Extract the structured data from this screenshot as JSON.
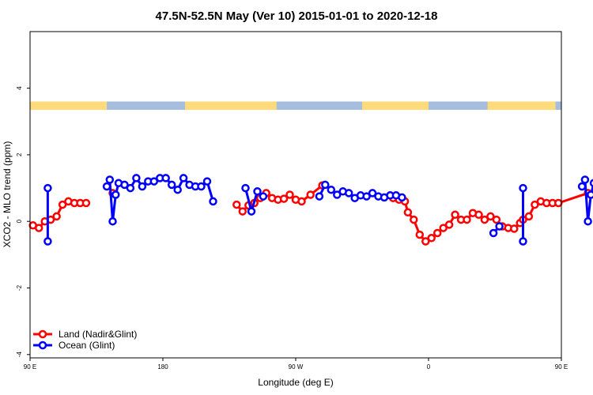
{
  "chart_data": {
    "type": "line",
    "title": "47.5N-52.5N May (Ver 10)   2015-01-01 to 2020-12-18",
    "xlabel": "Longitude (deg E)",
    "ylabel": "XCO2 - MLO trend (ppm)",
    "xlim": [
      90,
      450
    ],
    "ylim": [
      -4.1,
      5.7
    ],
    "x_ticks": [
      {
        "value": 90,
        "label": "90 E"
      },
      {
        "value": 180,
        "label": "180"
      },
      {
        "value": 270,
        "label": "90 W"
      },
      {
        "value": 360,
        "label": "0"
      },
      {
        "value": 450,
        "label": "90 E"
      },
      {
        "value": 540,
        "label": "180"
      }
    ],
    "y_ticks": [
      {
        "value": -4,
        "label": "-4"
      },
      {
        "value": -2,
        "label": "-2"
      },
      {
        "value": 0,
        "label": "0"
      },
      {
        "value": 2,
        "label": "2"
      },
      {
        "value": 4,
        "label": "4"
      }
    ],
    "grid": false,
    "legend_position": "bottom-left",
    "surface_strip": {
      "y_range": [
        3.35,
        3.6
      ],
      "land_color": "#FFDA7A",
      "ocean_color": "#A7BDDE",
      "land_segments": [
        [
          90,
          142
        ],
        [
          195,
          257
        ],
        [
          315,
          360
        ],
        [
          400,
          446
        ],
        [
          480,
          540
        ]
      ]
    },
    "series": [
      {
        "name": "Land (Nadir&Glint)",
        "color": "#FF0000",
        "points": [
          [
            92,
            -0.12
          ],
          [
            96,
            -0.2
          ],
          [
            100,
            0
          ],
          [
            104,
            0.05
          ],
          [
            108,
            0.15
          ],
          [
            112,
            0.5
          ],
          [
            116,
            0.6
          ],
          [
            120,
            0.55
          ],
          [
            124,
            0.55
          ],
          [
            128,
            0.55
          ],
          [
            146,
            0.85
          ],
          [
            230,
            0.5
          ],
          [
            234,
            0.3
          ],
          [
            238,
            0.48
          ],
          [
            242,
            0.55
          ],
          [
            246,
            0.7
          ],
          [
            250,
            0.85
          ],
          [
            254,
            0.7
          ],
          [
            258,
            0.65
          ],
          [
            262,
            0.68
          ],
          [
            266,
            0.8
          ],
          [
            270,
            0.65
          ],
          [
            274,
            0.6
          ],
          [
            280,
            0.8
          ],
          [
            288,
            1.08
          ],
          [
            336,
            0.7
          ],
          [
            340,
            0.65
          ],
          [
            344,
            0.6
          ],
          [
            346,
            0.27
          ],
          [
            350,
            0.05
          ],
          [
            354,
            -0.4
          ],
          [
            358,
            -0.6
          ],
          [
            362,
            -0.5
          ],
          [
            366,
            -0.35
          ],
          [
            370,
            -0.2
          ],
          [
            374,
            -0.1
          ],
          [
            378,
            0.2
          ],
          [
            382,
            0.05
          ],
          [
            386,
            0.05
          ],
          [
            390,
            0.25
          ],
          [
            394,
            0.2
          ],
          [
            398,
            0.05
          ],
          [
            402,
            0.15
          ],
          [
            406,
            0.05
          ],
          [
            410,
            -0.15
          ],
          [
            414,
            -0.2
          ],
          [
            418,
            -0.22
          ],
          [
            422,
            -0.05
          ],
          [
            424,
            0.05
          ],
          [
            428,
            0.15
          ],
          [
            432,
            0.5
          ],
          [
            436,
            0.6
          ],
          [
            440,
            0.55
          ],
          [
            444,
            0.55
          ],
          [
            448,
            0.55
          ],
          [
            468,
            0.85
          ]
        ],
        "segment_breaks": [
          10,
          11,
          25
        ]
      },
      {
        "name": "Ocean (Glint)",
        "color": "#0000FF",
        "points": [
          [
            102,
            1.0
          ],
          [
            102,
            -0.6
          ],
          [
            142,
            1.05
          ],
          [
            144,
            1.25
          ],
          [
            146,
            0.0
          ],
          [
            148,
            0.8
          ],
          [
            150,
            1.15
          ],
          [
            154,
            1.1
          ],
          [
            158,
            1.0
          ],
          [
            162,
            1.3
          ],
          [
            166,
            1.05
          ],
          [
            170,
            1.2
          ],
          [
            174,
            1.2
          ],
          [
            178,
            1.3
          ],
          [
            182,
            1.3
          ],
          [
            186,
            1.1
          ],
          [
            190,
            0.95
          ],
          [
            194,
            1.3
          ],
          [
            198,
            1.1
          ],
          [
            202,
            1.05
          ],
          [
            206,
            1.05
          ],
          [
            210,
            1.2
          ],
          [
            214,
            0.6
          ],
          [
            236,
            1.0
          ],
          [
            240,
            0.3
          ],
          [
            244,
            0.9
          ],
          [
            248,
            0.75
          ],
          [
            286,
            0.75
          ],
          [
            290,
            1.1
          ],
          [
            294,
            0.95
          ],
          [
            298,
            0.8
          ],
          [
            302,
            0.9
          ],
          [
            306,
            0.85
          ],
          [
            310,
            0.7
          ],
          [
            314,
            0.78
          ],
          [
            318,
            0.75
          ],
          [
            322,
            0.85
          ],
          [
            326,
            0.75
          ],
          [
            330,
            0.72
          ],
          [
            334,
            0.78
          ],
          [
            338,
            0.78
          ],
          [
            342,
            0.72
          ],
          [
            404,
            -0.35
          ],
          [
            408,
            -0.15
          ],
          [
            424,
            1.0
          ],
          [
            424,
            -0.6
          ],
          [
            464,
            1.05
          ],
          [
            466,
            1.25
          ],
          [
            468,
            0.0
          ],
          [
            470,
            0.8
          ],
          [
            472,
            1.15
          ],
          [
            476,
            1.1
          ],
          [
            480,
            1.0
          ],
          [
            484,
            1.3
          ],
          [
            488,
            1.05
          ]
        ],
        "segment_breaks": [
          2,
          23,
          27,
          42,
          44,
          46
        ]
      }
    ]
  }
}
